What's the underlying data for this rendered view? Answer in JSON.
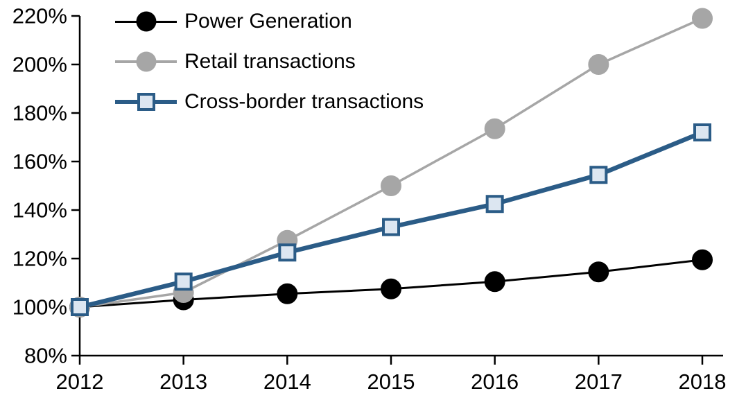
{
  "chart_data": {
    "type": "line",
    "title": "",
    "categories": [
      "2012",
      "2013",
      "2014",
      "2015",
      "2016",
      "2017",
      "2018"
    ],
    "series": [
      {
        "name": "Power Generation",
        "values": [
          100,
          103,
          105.5,
          107.5,
          110.5,
          114.5,
          119.5
        ],
        "line_color": "#000000",
        "line_width": 3,
        "marker": "circle",
        "marker_fill": "#000000",
        "marker_border": "#000000",
        "marker_size": 29
      },
      {
        "name": "Retail transactions",
        "values": [
          100,
          106,
          127.5,
          150,
          173.5,
          200,
          219
        ],
        "line_color": "#a6a6a6",
        "line_width": 3.5,
        "marker": "circle",
        "marker_fill": "#a6a6a6",
        "marker_border": "#a6a6a6",
        "marker_size": 29
      },
      {
        "name": "Cross-border transactions",
        "values": [
          100,
          110.5,
          122.5,
          133,
          142.5,
          154.5,
          172
        ],
        "line_color": "#2b5c87",
        "line_width": 6.5,
        "marker": "square",
        "marker_fill": "#dce6f1",
        "marker_border": "#2b5c87",
        "marker_size": 26
      }
    ],
    "xlabel": "",
    "ylabel": "",
    "ylim": [
      80,
      220
    ],
    "ytick_step": 20,
    "ytick_labels": [
      "80%",
      "100%",
      "120%",
      "140%",
      "160%",
      "180%",
      "200%",
      "220%"
    ],
    "xtick_labels": [
      "2012",
      "2013",
      "2014",
      "2015",
      "2016",
      "2017",
      "2018"
    ],
    "grid": false,
    "legend_position": "top-left",
    "axis_color": "#000000",
    "background_color": "#ffffff"
  }
}
